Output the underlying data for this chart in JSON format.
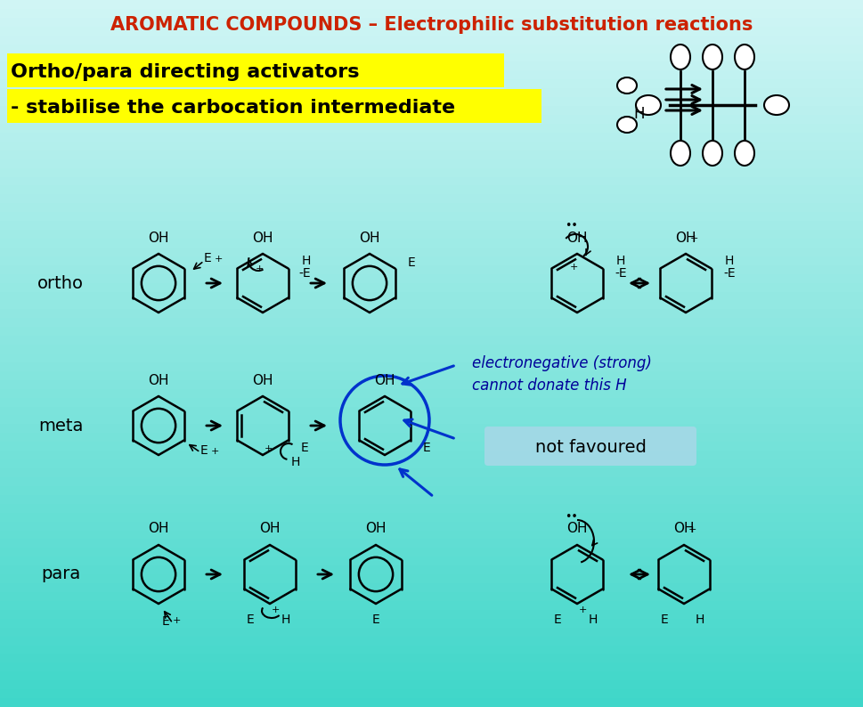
{
  "title": "AROMATIC COMPOUNDS – Electrophilic substitution reactions",
  "title_color": "#cc2200",
  "bg_color": "#3dd6c8",
  "bg_top_color": "#d0f5f5",
  "highlight_color": "#ffff00",
  "highlight_text1": "Ortho/para directing activators",
  "highlight_text2": "- stabilise the carbocation intermediate",
  "label_ortho": "ortho",
  "label_meta": "meta",
  "label_para": "para",
  "not_favoured_text": "not favoured",
  "not_favoured_bg": "#a8d8e8",
  "handwriting_line1": "electronegative (strong)",
  "handwriting_line2": "cannot donate this H",
  "handwriting_color": "#000099",
  "arrow_color": "#000000",
  "blue_arrow_color": "#0033cc"
}
